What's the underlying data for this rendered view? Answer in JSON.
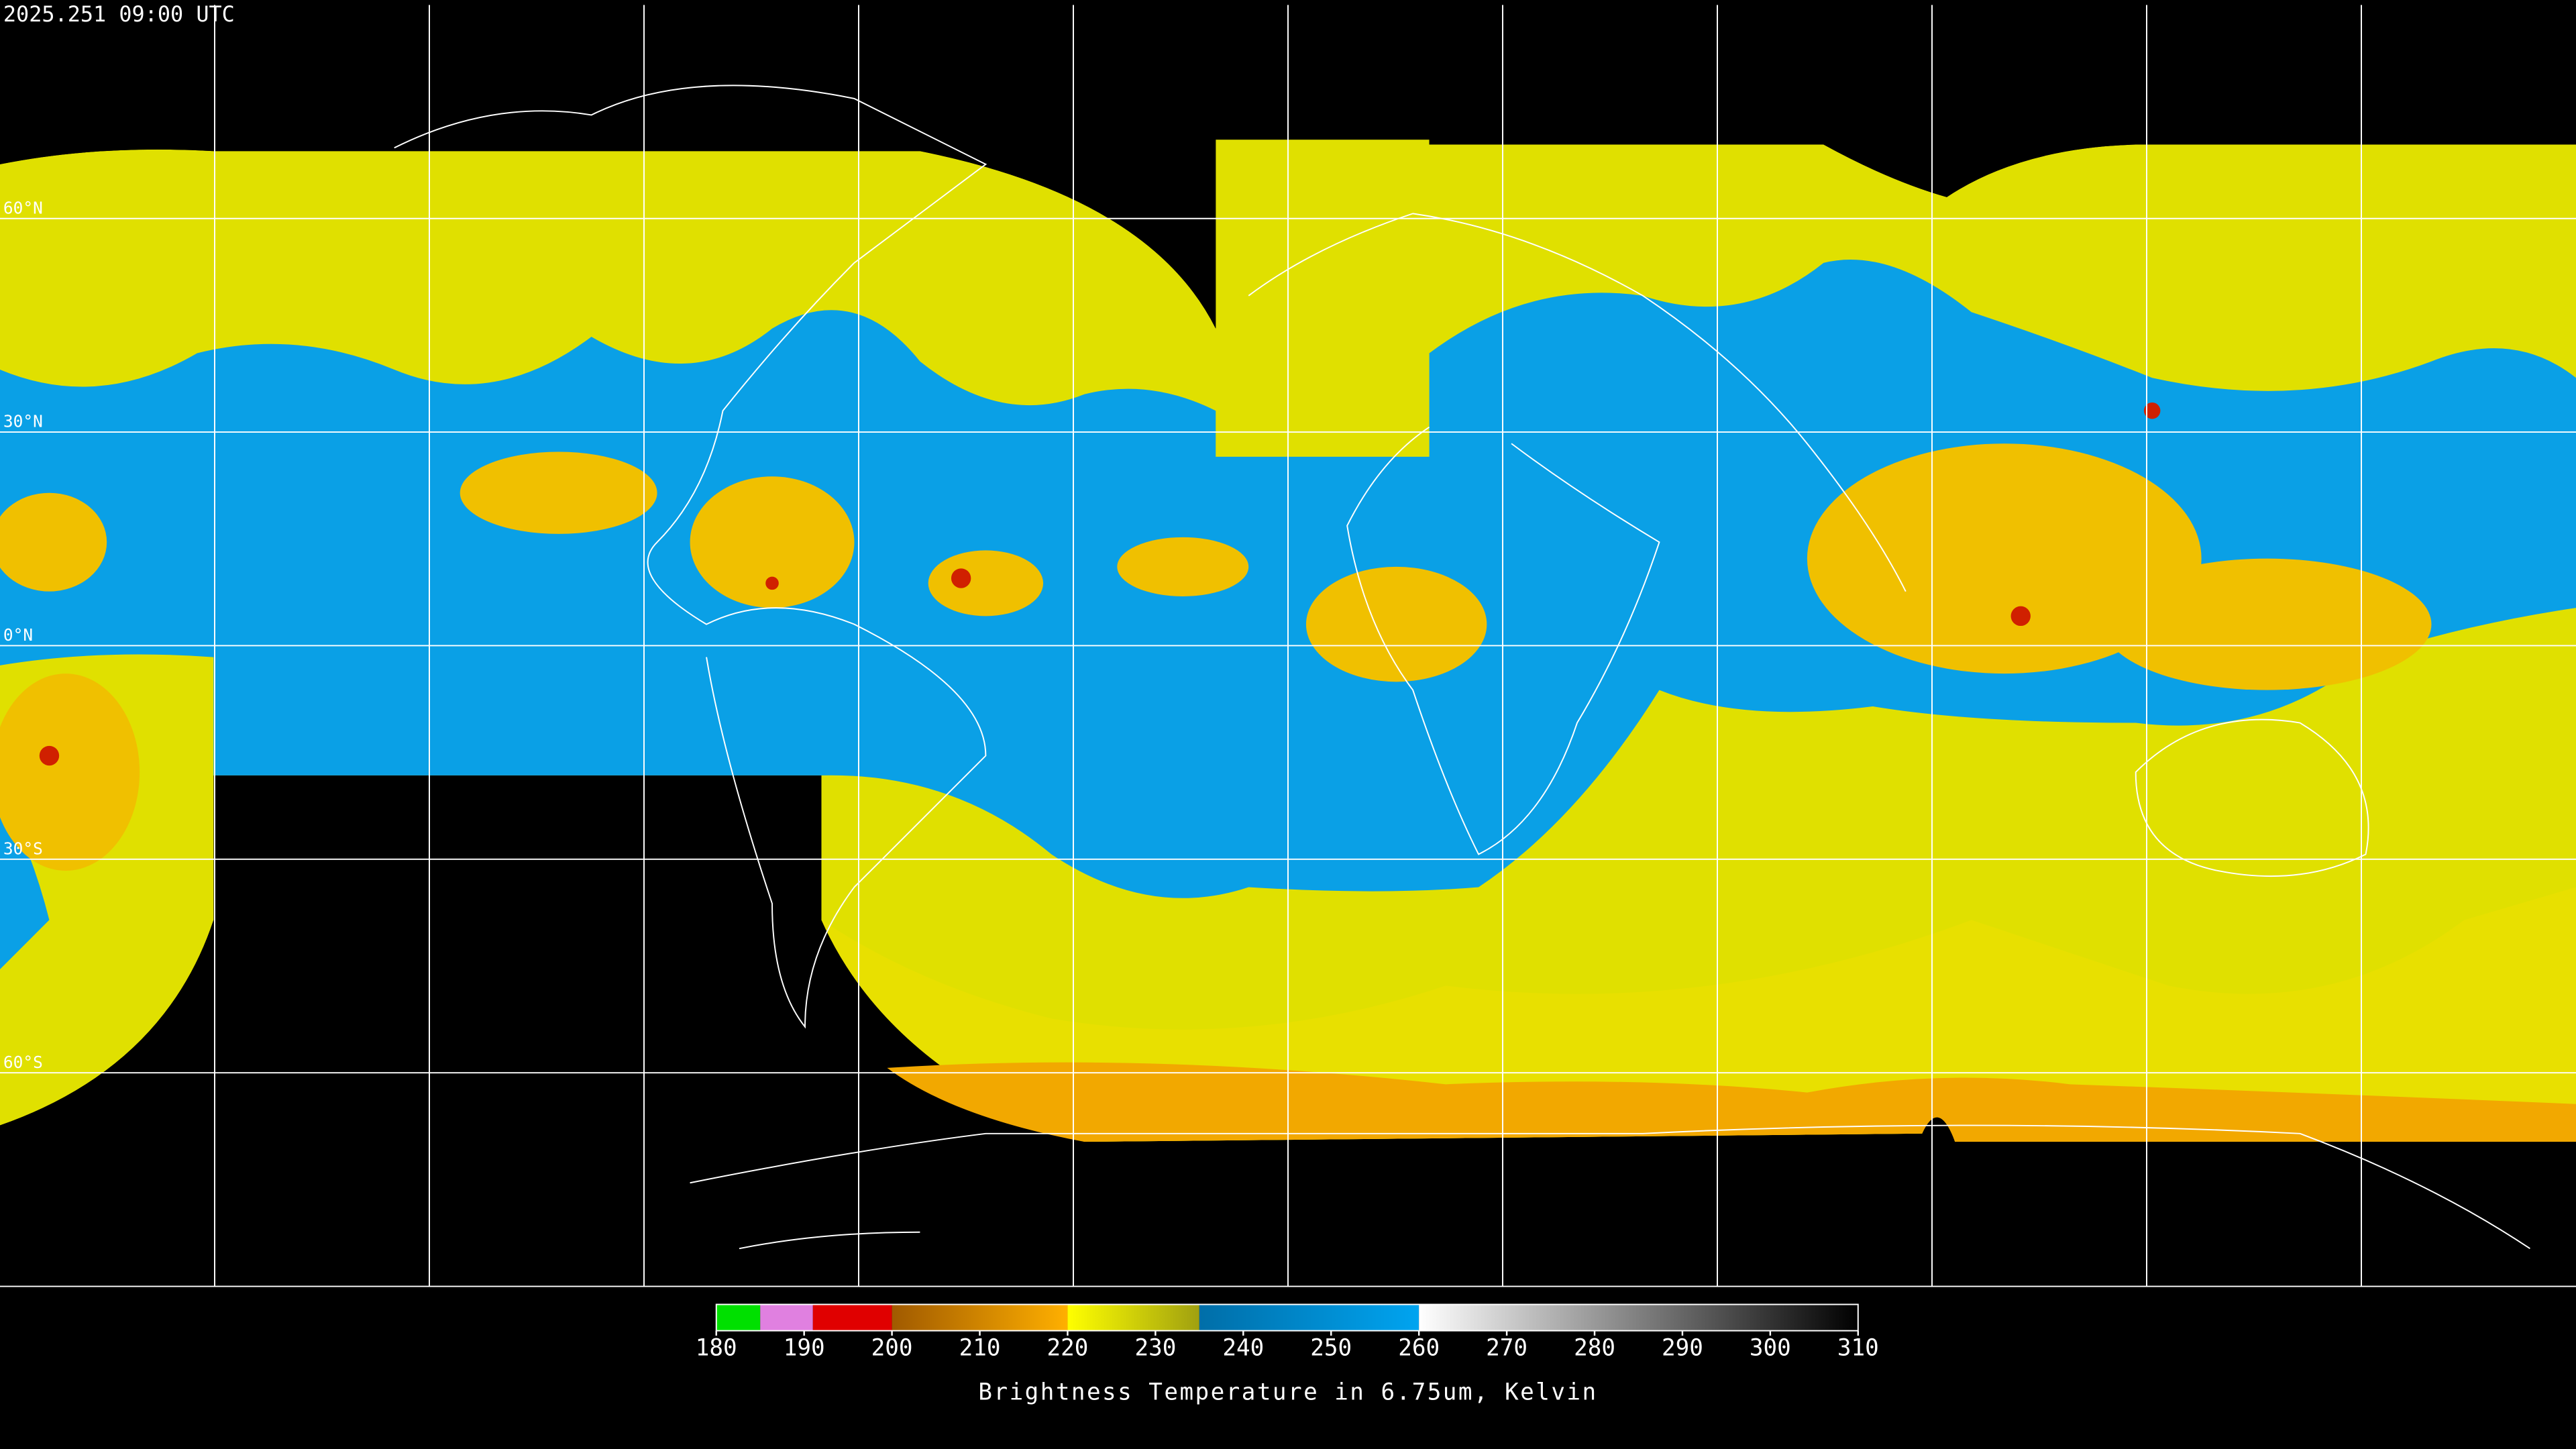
{
  "header": {
    "timestamp": "2025.251 09:00 UTC"
  },
  "map": {
    "lat_labels": [
      {
        "value": 60,
        "label": "60°N"
      },
      {
        "value": 30,
        "label": "30°N"
      },
      {
        "value": 0,
        "label": "0°N"
      },
      {
        "value": -30,
        "label": "30°S"
      },
      {
        "value": -60,
        "label": "60°S"
      }
    ]
  },
  "colorbar": {
    "label": "Brightness Temperature in 6.75um, Kelvin",
    "range": [
      180,
      310
    ],
    "ticks": [
      180,
      190,
      200,
      210,
      220,
      230,
      240,
      250,
      260,
      270,
      280,
      290,
      300,
      310
    ],
    "segments": [
      {
        "from": 180,
        "to": 185,
        "colors": [
          "#00e000",
          "#00e000"
        ]
      },
      {
        "from": 185,
        "to": 191,
        "colors": [
          "#e080e0",
          "#e080e0"
        ]
      },
      {
        "from": 191,
        "to": 200,
        "colors": [
          "#e00000",
          "#e00000"
        ]
      },
      {
        "from": 200,
        "to": 220,
        "colors": [
          "#a05a00",
          "#ffb000"
        ]
      },
      {
        "from": 220,
        "to": 235,
        "colors": [
          "#ffff00",
          "#a0a010"
        ]
      },
      {
        "from": 235,
        "to": 260,
        "colors": [
          "#006ea8",
          "#00a4f0"
        ]
      },
      {
        "from": 260,
        "to": 310,
        "colors": [
          "#ffffff",
          "#000000"
        ]
      }
    ]
  }
}
